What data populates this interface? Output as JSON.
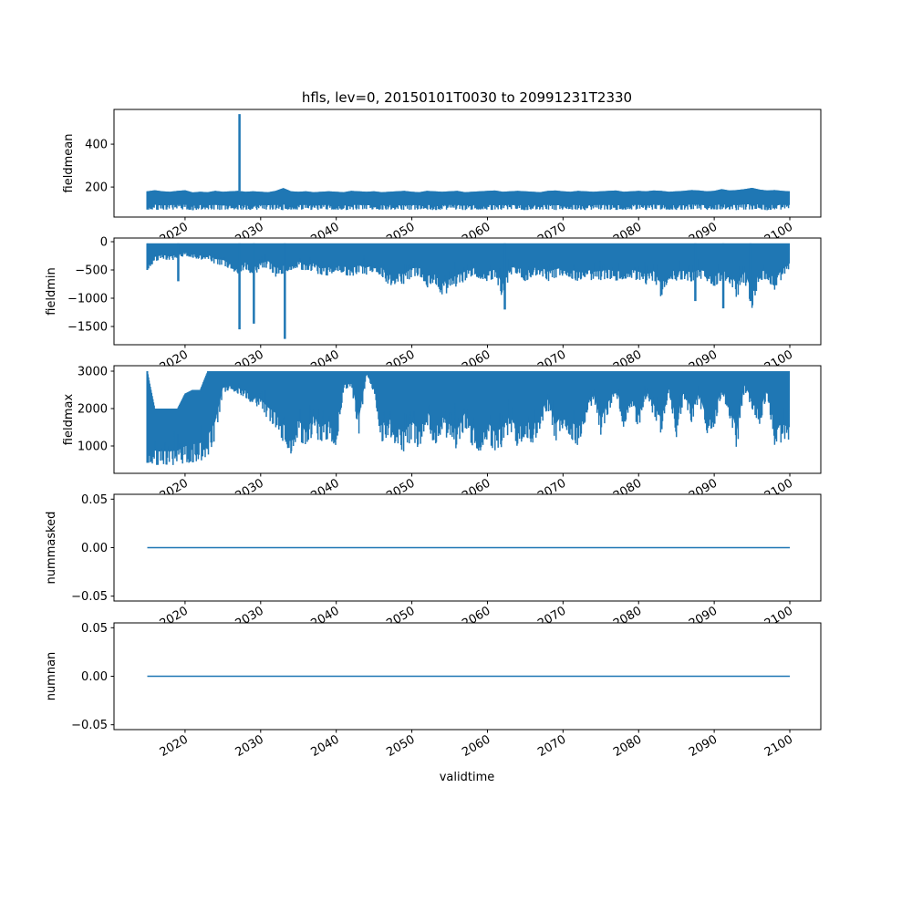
{
  "chart_data": {
    "type": "line",
    "title": "hfls, lev=0, 20150101T0030 to 20991231T2330",
    "xlabel": "validtime",
    "x_ticks": [
      "2020",
      "2030",
      "2040",
      "2050",
      "2060",
      "2070",
      "2080",
      "2090",
      "2100"
    ],
    "xlim": [
      2010.6,
      2104.1
    ],
    "color": "#1f77b4",
    "envelope_years_start": 2015,
    "panels": [
      {
        "ylabel": "fieldmean",
        "ylim": [
          60,
          562
        ],
        "y_ticks": [
          200,
          400
        ],
        "y_tick_labels": [
          "200",
          "400"
        ],
        "upper": [
          180,
          185,
          180,
          178,
          182,
          185,
          175,
          178,
          176,
          182,
          178,
          180,
          182,
          178,
          180,
          178,
          176,
          182,
          195,
          180,
          178,
          180,
          176,
          178,
          180,
          178,
          176,
          182,
          180,
          178,
          180,
          176,
          178,
          180,
          182,
          178,
          176,
          182,
          180,
          178,
          180,
          182,
          176,
          178,
          180,
          182,
          184,
          178,
          180,
          182,
          180,
          178,
          176,
          182,
          184,
          180,
          178,
          182,
          180,
          178,
          180,
          182,
          184,
          178,
          180,
          182,
          180,
          184,
          182,
          178,
          180,
          182,
          186,
          184,
          180,
          182,
          190,
          184,
          186,
          190,
          196,
          188,
          184,
          186,
          182,
          180
        ],
        "lower": [
          95,
          95,
          92,
          95,
          95,
          95,
          92,
          95,
          95,
          95,
          92,
          95,
          95,
          95,
          92,
          95,
          95,
          95,
          92,
          95,
          95,
          95,
          92,
          95,
          95,
          95,
          92,
          95,
          95,
          95,
          92,
          95,
          95,
          95,
          92,
          95,
          95,
          95,
          92,
          95,
          95,
          95,
          92,
          95,
          95,
          95,
          92,
          95,
          95,
          95,
          92,
          95,
          95,
          95,
          92,
          95,
          95,
          95,
          92,
          95,
          95,
          95,
          92,
          95,
          95,
          95,
          92,
          95,
          95,
          95,
          92,
          95,
          95,
          95,
          92,
          95,
          95,
          95,
          92,
          95,
          95,
          95,
          92,
          95,
          95,
          95
        ],
        "spikes": [
          {
            "x": 2027.2,
            "y": 540
          }
        ]
      },
      {
        "ylabel": "fieldmin",
        "ylim": [
          -1823,
          65
        ],
        "y_ticks": [
          -1500,
          -1000,
          -500,
          0
        ],
        "y_tick_labels": [
          "−1500",
          "−1000",
          "−500",
          "0"
        ],
        "upper": [
          -30,
          -30,
          -30,
          -30,
          -30,
          -30,
          -30,
          -30,
          -30,
          -30,
          -30,
          -30,
          -30,
          -30,
          -30,
          -30,
          -30,
          -30,
          -30,
          -30,
          -30,
          -30,
          -30,
          -30,
          -30,
          -30,
          -30,
          -30,
          -30,
          -30,
          -30,
          -30,
          -30,
          -30,
          -30,
          -30,
          -30,
          -30,
          -30,
          -30,
          -30,
          -30,
          -30,
          -30,
          -30,
          -30,
          -30,
          -30,
          -30,
          -30,
          -30,
          -30,
          -30,
          -30,
          -30,
          -30,
          -30,
          -30,
          -30,
          -30,
          -30,
          -30,
          -30,
          -30,
          -30,
          -30,
          -30,
          -30,
          -30,
          -30,
          -30,
          -30,
          -30,
          -30,
          -30,
          -30,
          -30,
          -30,
          -30,
          -30,
          -30,
          -30,
          -30,
          -30,
          -30,
          -30
        ],
        "lower": [
          -500,
          -350,
          -300,
          -340,
          -300,
          -250,
          -280,
          -320,
          -300,
          -400,
          -420,
          -500,
          -560,
          -480,
          -600,
          -500,
          -450,
          -620,
          -560,
          -500,
          -450,
          -560,
          -500,
          -620,
          -600,
          -500,
          -580,
          -620,
          -550,
          -600,
          -540,
          -600,
          -780,
          -740,
          -760,
          -620,
          -600,
          -820,
          -700,
          -960,
          -880,
          -780,
          -700,
          -600,
          -650,
          -700,
          -650,
          -1000,
          -600,
          -580,
          -700,
          -620,
          -580,
          -700,
          -640,
          -600,
          -650,
          -700,
          -620,
          -700,
          -680,
          -650,
          -700,
          -660,
          -640,
          -700,
          -760,
          -680,
          -1000,
          -650,
          -700,
          -660,
          -720,
          -650,
          -700,
          -800,
          -680,
          -720,
          -1000,
          -700,
          -1180,
          -700,
          -660,
          -860,
          -650,
          -500
        ],
        "spikes": [
          {
            "x": 2019.1,
            "y": -700
          },
          {
            "x": 2027.2,
            "y": -1550
          },
          {
            "x": 2029.1,
            "y": -1450
          },
          {
            "x": 2033.2,
            "y": -1720
          },
          {
            "x": 2062.3,
            "y": -1200
          },
          {
            "x": 2087.5,
            "y": -1050
          },
          {
            "x": 2091.2,
            "y": -1180
          },
          {
            "x": 2094.8,
            "y": -1050
          }
        ]
      },
      {
        "ylabel": "fieldmax",
        "ylim": [
          268,
          3146
        ],
        "y_ticks": [
          1000,
          2000,
          3000
        ],
        "y_tick_labels": [
          "1000",
          "2000",
          "3000"
        ],
        "upper": [
          3000,
          2000,
          2000,
          2000,
          2000,
          2400,
          2500,
          2500,
          3000,
          3000,
          3000,
          3000,
          3000,
          3000,
          3000,
          3000,
          3000,
          3000,
          3000,
          3000,
          3000,
          3000,
          3000,
          3000,
          3000,
          3000,
          3000,
          3000,
          3000,
          3000,
          3000,
          3000,
          3000,
          3000,
          3000,
          3000,
          3000,
          3000,
          3000,
          3000,
          3000,
          3000,
          3000,
          3000,
          3000,
          3000,
          3000,
          3000,
          3000,
          3000,
          3000,
          3000,
          3000,
          3000,
          3000,
          3000,
          3000,
          3000,
          3000,
          3000,
          3000,
          3000,
          3000,
          3000,
          3000,
          3000,
          3000,
          3000,
          3000,
          3000,
          3000,
          3000,
          3000,
          3000,
          3000,
          3000,
          3000,
          3000,
          3000,
          3000,
          3000,
          3000,
          3000,
          3000,
          3000,
          3000
        ],
        "lower": [
          550,
          500,
          480,
          480,
          500,
          520,
          560,
          600,
          700,
          1200,
          2400,
          2500,
          2400,
          2300,
          2100,
          2000,
          1700,
          1500,
          1100,
          800,
          1300,
          800,
          1400,
          1000,
          1200,
          1000,
          2500,
          2600,
          1300,
          2900,
          2400,
          1100,
          1300,
          1000,
          800,
          1200,
          900,
          1600,
          1000,
          1400,
          1100,
          900,
          1500,
          1000,
          850,
          1200,
          800,
          1000,
          1400,
          900,
          1300,
          1000,
          1500,
          2000,
          1100,
          1500,
          1200,
          1000,
          1700,
          2200,
          1300,
          1900,
          2400,
          1500,
          2100,
          1400,
          2300,
          1800,
          1300,
          2500,
          1200,
          2300,
          1600,
          2200,
          1300,
          1500,
          2400,
          1800,
          900,
          2500,
          2000,
          1500,
          2400,
          1000,
          1100,
          1000
        ],
        "spikes": []
      },
      {
        "ylabel": "nummasked",
        "ylim": [
          -0.055,
          0.055
        ],
        "y_ticks": [
          -0.05,
          0,
          0.05
        ],
        "y_tick_labels": [
          "−0.05",
          "0.00",
          "0.05"
        ],
        "line": {
          "x": [
            2015,
            2100
          ],
          "y": [
            0,
            0
          ]
        }
      },
      {
        "ylabel": "numnan",
        "ylim": [
          -0.055,
          0.055
        ],
        "y_ticks": [
          -0.05,
          0,
          0.05
        ],
        "y_tick_labels": [
          "−0.05",
          "0.00",
          "0.05"
        ],
        "line": {
          "x": [
            2015,
            2100
          ],
          "y": [
            0,
            0
          ]
        }
      }
    ]
  }
}
